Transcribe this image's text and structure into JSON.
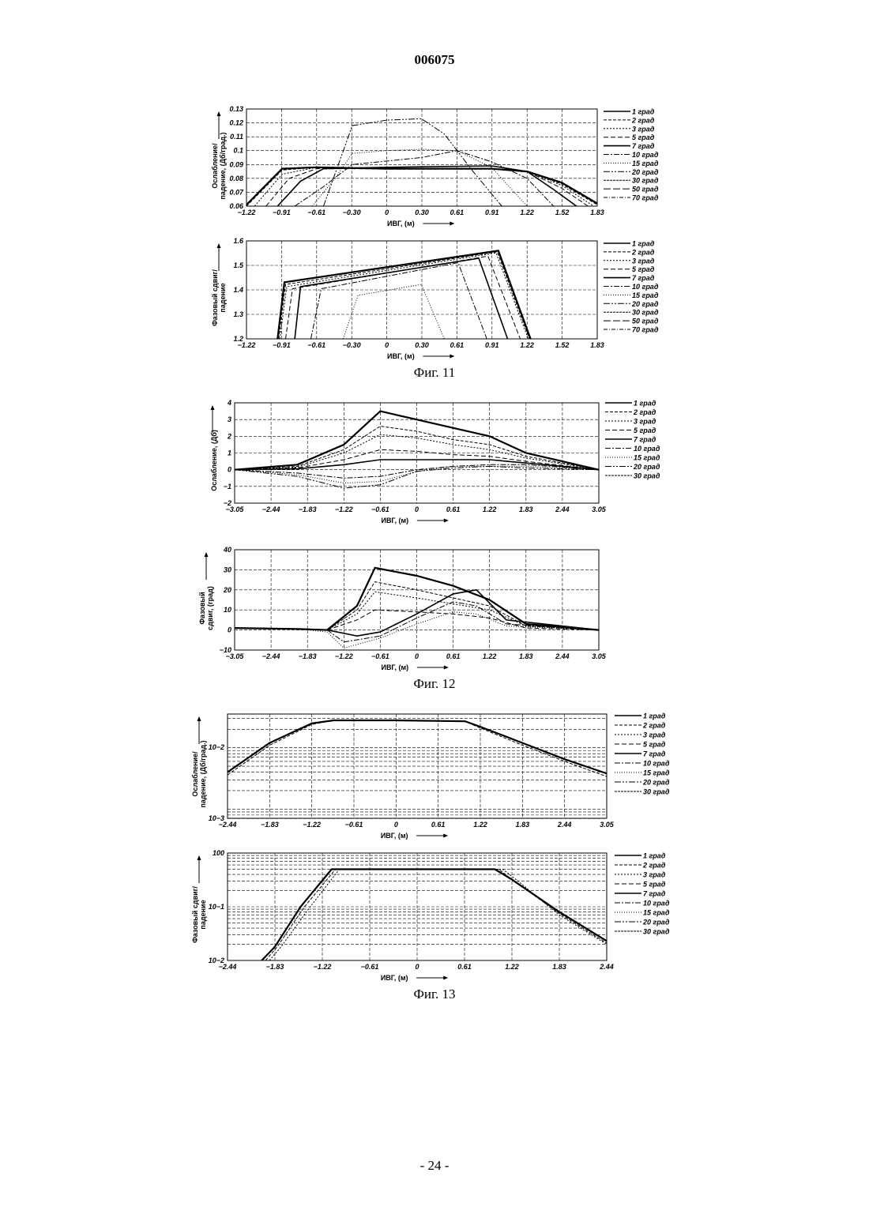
{
  "document_number": "006075",
  "page_number": "- 24 -",
  "figures": [
    {
      "caption": "Фиг. 11"
    },
    {
      "caption": "Фиг. 12"
    },
    {
      "caption": "Фиг. 13"
    }
  ],
  "chart_data": [
    {
      "figure": "Фиг. 11",
      "type": "line",
      "xlabel": "ИВГ, (м)",
      "ylabel": [
        "Ослабление/",
        "падение, (Дб/град.)"
      ],
      "x_ticks": [
        "−1.22",
        "−0.91",
        "−0.61",
        "−0.30",
        "0",
        "0.30",
        "0.61",
        "0.91",
        "1.22",
        "1.52",
        "1.83"
      ],
      "y_ticks": [
        "0.06",
        "0.07",
        "0.08",
        "0.09",
        "0.1",
        "0.11",
        "0.12",
        "0.13"
      ],
      "xlim": [
        -1.22,
        1.83
      ],
      "ylim": [
        0.06,
        0.13
      ],
      "yscale": "linear",
      "grid": true,
      "legend": [
        "1 град",
        "2 град",
        "3 град",
        "5 град",
        "7 град",
        "10 град",
        "15 град",
        "20 град",
        "30 град",
        "50 град",
        "70 град"
      ],
      "legend_position": "right",
      "series": [
        {
          "x": [
            -1.22,
            -0.91,
            -0.61,
            0,
            0.91,
            1.22,
            1.52,
            1.83
          ],
          "y": [
            0.061,
            0.087,
            0.088,
            0.087,
            0.087,
            0.085,
            0.077,
            0.062
          ]
        },
        {
          "x": [
            -1.22,
            -0.91,
            -0.61,
            0,
            0.91,
            1.22,
            1.52,
            1.83
          ],
          "y": [
            0.06,
            0.086,
            0.088,
            0.087,
            0.087,
            0.085,
            0.076,
            0.061
          ]
        },
        {
          "x": [
            -1.15,
            -0.91,
            -0.61,
            0,
            0.91,
            1.22,
            1.52,
            1.8
          ],
          "y": [
            0.06,
            0.083,
            0.088,
            0.087,
            0.087,
            0.085,
            0.075,
            0.06
          ]
        },
        {
          "x": [
            -1.05,
            -0.85,
            -0.61,
            0,
            0.91,
            1.22,
            1.52,
            1.75
          ],
          "y": [
            0.06,
            0.08,
            0.087,
            0.087,
            0.087,
            0.085,
            0.073,
            0.06
          ]
        },
        {
          "x": [
            -0.95,
            -0.75,
            -0.55,
            0,
            0.91,
            1.22,
            1.45,
            1.65
          ],
          "y": [
            0.06,
            0.078,
            0.087,
            0.088,
            0.089,
            0.085,
            0.072,
            0.06
          ]
        },
        {
          "x": [
            -0.8,
            -0.55,
            -0.3,
            0.3,
            0.61,
            0.91,
            1.22,
            1.45
          ],
          "y": [
            0.06,
            0.074,
            0.09,
            0.095,
            0.1,
            0.092,
            0.08,
            0.06
          ]
        },
        {
          "x": [
            -0.65,
            -0.45,
            -0.3,
            0,
            0.3,
            0.61,
            0.91,
            1.22
          ],
          "y": [
            0.06,
            0.08,
            0.098,
            0.1,
            0.101,
            0.1,
            0.088,
            0.06
          ]
        },
        {
          "x": [
            -0.55,
            -0.3,
            0,
            0.3,
            0.5,
            0.75,
            1.0
          ],
          "y": [
            0.06,
            0.118,
            0.122,
            0.123,
            0.112,
            0.085,
            0.06
          ]
        }
      ]
    },
    {
      "figure": "Фиг. 11",
      "type": "line",
      "xlabel": "ИВГ, (м)",
      "ylabel": [
        "Фазовый сдвиг/",
        "падение"
      ],
      "x_ticks": [
        "−1.22",
        "−0.91",
        "−0.61",
        "−0.30",
        "0",
        "0.30",
        "0.61",
        "0.91",
        "1.22",
        "1.52",
        "1.83"
      ],
      "y_ticks": [
        "1.2",
        "1.3",
        "1.4",
        "1.5",
        "1.6"
      ],
      "xlim": [
        -1.22,
        1.83
      ],
      "ylim": [
        1.2,
        1.65
      ],
      "yscale": "linear",
      "grid": true,
      "legend": [
        "1 град",
        "2 град",
        "3 град",
        "5 град",
        "7 град",
        "10 град",
        "15 град",
        "20 град",
        "30 град",
        "50 град",
        "70 град"
      ],
      "legend_position": "right",
      "series": [
        {
          "x": [
            -0.95,
            -0.89,
            0.97,
            1.25
          ],
          "y": [
            1.2,
            1.46,
            1.605,
            1.2
          ]
        },
        {
          "x": [
            -0.94,
            -0.88,
            0.96,
            1.24
          ],
          "y": [
            1.2,
            1.45,
            1.6,
            1.2
          ]
        },
        {
          "x": [
            -0.93,
            -0.87,
            0.95,
            1.23
          ],
          "y": [
            1.2,
            1.44,
            1.595,
            1.2
          ]
        },
        {
          "x": [
            -0.88,
            -0.82,
            0.88,
            1.16
          ],
          "y": [
            1.2,
            1.43,
            1.58,
            1.2
          ]
        },
        {
          "x": [
            -0.8,
            -0.75,
            0.8,
            1.05
          ],
          "y": [
            1.2,
            1.44,
            1.57,
            1.2
          ]
        },
        {
          "x": [
            -0.66,
            -0.57,
            0.62,
            0.87
          ],
          "y": [
            1.2,
            1.43,
            1.55,
            1.2
          ]
        },
        {
          "x": [
            -0.38,
            -0.25,
            0.3,
            0.5
          ],
          "y": [
            1.2,
            1.4,
            1.45,
            1.2
          ]
        }
      ]
    },
    {
      "figure": "Фиг. 12",
      "type": "line",
      "xlabel": "ИВГ, (м)",
      "ylabel": [
        "Ослабление, (Дб)"
      ],
      "x_ticks": [
        "−3.05",
        "−2.44",
        "−1.83",
        "−1.22",
        "−0.61",
        "0",
        "0.61",
        "1.22",
        "1.83",
        "2.44",
        "3.05"
      ],
      "y_ticks": [
        "−2",
        "−1",
        "0",
        "1",
        "2",
        "3",
        "4"
      ],
      "xlim": [
        -3.05,
        3.05
      ],
      "ylim": [
        -2,
        4
      ],
      "yscale": "linear",
      "grid": true,
      "legend": [
        "1 град",
        "2 град",
        "3 град",
        "5 град",
        "7 град",
        "10 град",
        "15 град",
        "20 град",
        "30 град"
      ],
      "legend_position": "right",
      "series": [
        {
          "x": [
            -3.05,
            -2.0,
            -1.22,
            -0.61,
            0,
            0.61,
            1.22,
            1.83,
            3.05
          ],
          "y": [
            0,
            0.3,
            1.5,
            3.5,
            3.0,
            2.5,
            2.0,
            1.0,
            0
          ]
        },
        {
          "x": [
            -3.05,
            -2.0,
            -1.22,
            -0.61,
            0,
            0.61,
            1.22,
            1.83,
            3.05
          ],
          "y": [
            0,
            0.2,
            1.2,
            2.6,
            2.3,
            1.8,
            1.5,
            0.8,
            0
          ]
        },
        {
          "x": [
            -3.05,
            -2.0,
            -1.22,
            -0.61,
            0,
            0.61,
            1.22,
            1.83,
            3.05
          ],
          "y": [
            0,
            0.15,
            1.0,
            2.1,
            1.9,
            1.5,
            1.2,
            0.7,
            0
          ]
        },
        {
          "x": [
            -3.05,
            -2.0,
            -1.22,
            -0.61,
            0,
            0.61,
            1.22,
            1.83,
            3.05
          ],
          "y": [
            0,
            0.1,
            0.6,
            1.2,
            1.1,
            0.9,
            0.8,
            0.5,
            0
          ]
        },
        {
          "x": [
            -3.05,
            -2.0,
            -1.22,
            -0.61,
            0,
            0.61,
            1.22,
            1.83,
            3.05
          ],
          "y": [
            0,
            0.05,
            0.3,
            0.6,
            0.6,
            0.6,
            0.6,
            0.4,
            0
          ]
        },
        {
          "x": [
            -3.05,
            -2.0,
            -1.22,
            -0.61,
            0,
            0.61,
            1.22,
            1.83,
            3.05
          ],
          "y": [
            0,
            -0.2,
            -0.5,
            -0.4,
            0,
            0.2,
            0.3,
            0.3,
            0
          ]
        },
        {
          "x": [
            -3.05,
            -2.0,
            -1.22,
            -0.61,
            0,
            0.61,
            1.22,
            1.83,
            3.05
          ],
          "y": [
            0,
            -0.3,
            -0.8,
            -0.7,
            -0.1,
            0.2,
            0.2,
            0.2,
            0
          ]
        },
        {
          "x": [
            -3.05,
            -2.0,
            -1.22,
            -0.61,
            0,
            0.61,
            1.22,
            1.83,
            3.05
          ],
          "y": [
            0,
            -0.4,
            -1.1,
            -0.9,
            -0.1,
            0.1,
            0.2,
            0.1,
            0
          ]
        }
      ]
    },
    {
      "figure": "Фиг. 12",
      "type": "line",
      "xlabel": "ИВГ, (м)",
      "ylabel": [
        "Фазовый",
        "сдвиг, (град)"
      ],
      "x_ticks": [
        "−3.05",
        "−2.44",
        "−1.83",
        "−1.22",
        "−0.61",
        "0",
        "0.61",
        "1.22",
        "1.83",
        "2.44",
        "3.05"
      ],
      "y_ticks": [
        "−10",
        "0",
        "10",
        "20",
        "30",
        "40"
      ],
      "xlim": [
        -3.05,
        3.05
      ],
      "ylim": [
        -10,
        40
      ],
      "yscale": "linear",
      "grid": true,
      "legend": [],
      "series": [
        {
          "x": [
            -3.05,
            -2.0,
            -1.5,
            -1.0,
            -0.7,
            0,
            0.61,
            1.22,
            1.83,
            3.05
          ],
          "y": [
            1,
            0.5,
            0,
            12,
            31,
            27,
            22,
            15,
            3,
            0
          ]
        },
        {
          "x": [
            -3.05,
            -2.0,
            -1.5,
            -1.0,
            -0.7,
            0,
            0.61,
            1.22,
            1.83,
            3.05
          ],
          "y": [
            1,
            0.5,
            0,
            10,
            24,
            20,
            16,
            12,
            2,
            0
          ]
        },
        {
          "x": [
            -3.05,
            -2.0,
            -1.5,
            -1.0,
            -0.7,
            0,
            0.61,
            1.22,
            1.83,
            3.05
          ],
          "y": [
            1,
            0.5,
            0,
            8,
            19,
            16,
            13,
            10,
            2,
            0
          ]
        },
        {
          "x": [
            -3.05,
            -2.0,
            -1.5,
            -1.0,
            -0.7,
            0,
            0.61,
            1.22,
            1.83,
            3.05
          ],
          "y": [
            1,
            0.5,
            0,
            5,
            10,
            9,
            8,
            6,
            1,
            0
          ]
        },
        {
          "x": [
            -3.05,
            -2.0,
            -1.5,
            -1.0,
            -0.61,
            0,
            0.61,
            1.0,
            1.5,
            3.05
          ],
          "y": [
            1,
            0.5,
            0,
            -3,
            -1,
            8,
            18,
            20,
            5,
            0
          ]
        },
        {
          "x": [
            -3.05,
            -2.0,
            -1.5,
            -1.22,
            -0.61,
            0,
            0.61,
            1.0,
            1.5,
            3.05
          ],
          "y": [
            1,
            0.5,
            0,
            -6,
            -3,
            6,
            14,
            12,
            3,
            0
          ]
        },
        {
          "x": [
            -3.05,
            -2.0,
            -1.5,
            -1.22,
            -0.61,
            0,
            0.61,
            1.0,
            1.5,
            3.05
          ],
          "y": [
            1,
            0.5,
            -1,
            -9,
            -4,
            3,
            9,
            8,
            2,
            0
          ]
        }
      ]
    },
    {
      "figure": "Фиг. 13",
      "type": "line",
      "xlabel": "ИВГ, (м)",
      "ylabel": [
        "Ослабление/",
        "падение, (Дб/град.)"
      ],
      "x_ticks": [
        "−2.44",
        "−1.83",
        "−1.22",
        "−0.61",
        "0",
        "0.61",
        "1.22",
        "1.83",
        "2.44",
        "3.05"
      ],
      "y_ticks": [
        "10−3",
        "10−2"
      ],
      "xlim": [
        -2.44,
        3.05
      ],
      "yscale": "log",
      "grid": true,
      "legend": [
        "1 град",
        "2 град",
        "3 град",
        "5 град",
        "7 град",
        "10 град",
        "15 град",
        "20 град",
        "30 град"
      ],
      "legend_position": "right",
      "series": [
        {
          "x": [
            -2.44,
            -1.83,
            -1.22,
            -0.9,
            0,
            1.0,
            1.22,
            1.83,
            2.44,
            3.05
          ],
          "y": [
            0.004,
            0.012,
            0.025,
            0.028,
            0.028,
            0.027,
            0.022,
            0.012,
            0.0065,
            0.0038
          ]
        },
        {
          "x": [
            -2.44,
            -1.83,
            -1.22,
            -0.9,
            0,
            1.0,
            1.22,
            1.83,
            2.44,
            3.05
          ],
          "y": [
            0.0036,
            0.011,
            0.024,
            0.028,
            0.028,
            0.027,
            0.021,
            0.011,
            0.006,
            0.0034
          ]
        }
      ]
    },
    {
      "figure": "Фиг. 13",
      "type": "line",
      "xlabel": "ИВГ, (м)",
      "ylabel": [
        "Фазовый сдвиг/",
        "падение"
      ],
      "x_ticks": [
        "−2.44",
        "−1.83",
        "−1.22",
        "−0.61",
        "0",
        "0.61",
        "1.22",
        "1.83",
        "2.44"
      ],
      "y_ticks": [
        "10−2",
        "10−1",
        "100"
      ],
      "xlim": [
        -2.44,
        2.44
      ],
      "yscale": "log",
      "grid": true,
      "legend": [
        "1 град",
        "2 град",
        "3 град",
        "5 град",
        "7 град",
        "10 град",
        "15 град",
        "20 град",
        "30 град"
      ],
      "legend_position": "right",
      "series": [
        {
          "x": [
            -2.0,
            -1.83,
            -1.5,
            -1.1,
            0,
            1.0,
            1.22,
            1.83,
            2.44
          ],
          "y": [
            0.01,
            0.018,
            0.1,
            0.5,
            0.5,
            0.5,
            0.32,
            0.08,
            0.023
          ]
        },
        {
          "x": [
            -1.95,
            -1.8,
            -1.45,
            -1.05,
            0,
            1.05,
            1.25,
            1.83,
            2.44
          ],
          "y": [
            0.01,
            0.018,
            0.1,
            0.5,
            0.5,
            0.5,
            0.3,
            0.075,
            0.021
          ]
        },
        {
          "x": [
            -1.9,
            -1.75,
            -1.4,
            -1.0,
            0,
            1.1,
            1.3,
            1.83,
            2.44
          ],
          "y": [
            0.01,
            0.018,
            0.09,
            0.5,
            0.5,
            0.5,
            0.3,
            0.07,
            0.02
          ]
        }
      ]
    }
  ]
}
